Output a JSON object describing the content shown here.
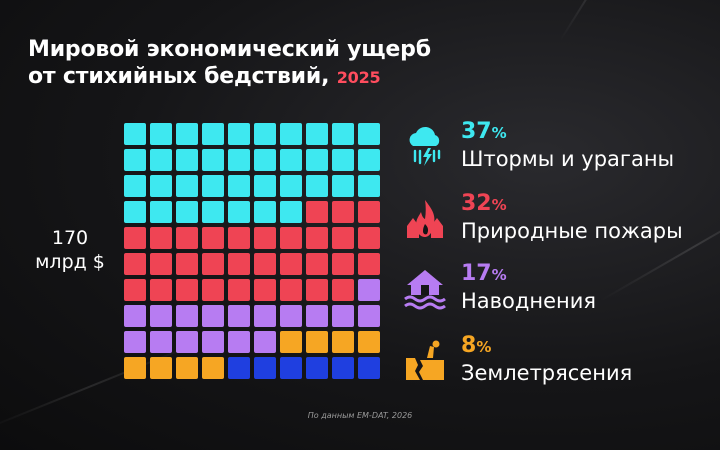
{
  "title": {
    "line1": "Мировой экономический ущерб",
    "line2": "от стихийных бедствий,",
    "year": "2025"
  },
  "total": {
    "value": "170",
    "unit": "млрд $"
  },
  "source": "По данным EM-DAT, 2026",
  "chart_data": {
    "type": "waffle",
    "grid": {
      "rows": 10,
      "cols": 10
    },
    "total": 170,
    "unit": "млрд $",
    "categories": [
      {
        "name": "Штормы и ураганы",
        "percent": 37,
        "label": "37",
        "sign": "%",
        "color": "#3ee8f0",
        "icon": "storm-icon"
      },
      {
        "name": "Природные пожары",
        "percent": 32,
        "label": "32",
        "sign": "%",
        "color": "#ef4454",
        "icon": "wildfire-icon"
      },
      {
        "name": "Наводнения",
        "percent": 17,
        "label": "17",
        "sign": "%",
        "color": "#b77cf2",
        "icon": "flood-icon"
      },
      {
        "name": "Землетрясения",
        "percent": 8,
        "label": "8",
        "sign": "%",
        "color": "#f6a623",
        "icon": "earthquake-icon"
      },
      {
        "name": "",
        "percent": 6,
        "label": "",
        "sign": "",
        "color": "#1f3fe0",
        "icon": ""
      }
    ]
  }
}
